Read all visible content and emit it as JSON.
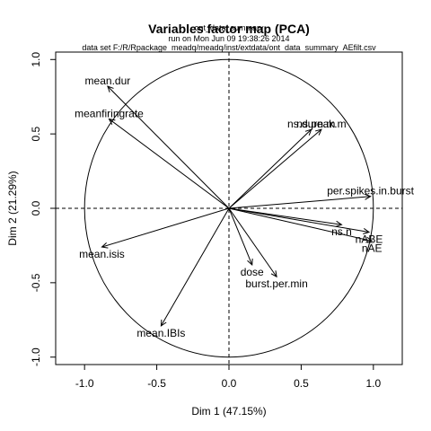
{
  "chart_data": {
    "type": "scatter",
    "title": "Variables factor map (PCA)",
    "overlay_title": "ont_data_summary",
    "run_info": "run on Mon Jun 09 19:38:26 2014",
    "data_set": "data set F:/R/Rpackage_meadq/meadq/inst/extdata/ont_data_summary_AEfilt.csv",
    "xlabel": "Dim 1 (47.15%)",
    "ylabel": "Dim 2 (21.29%)",
    "xlim": [
      -1.2,
      1.2
    ],
    "ylim": [
      -1.05,
      1.05
    ],
    "xticks": [
      "-1.0",
      "-0.5",
      "0.0",
      "0.5",
      "1.0"
    ],
    "yticks": [
      "-1.0",
      "-0.5",
      "0.0",
      "0.5",
      "1.0"
    ],
    "correlation_circle": true,
    "reference_lines": true,
    "variables": [
      {
        "name": "mean.dur",
        "x": -0.84,
        "y": 0.82
      },
      {
        "name": "meanfiringrate",
        "x": -0.83,
        "y": 0.6
      },
      {
        "name": "ns.durn.m",
        "x": 0.57,
        "y": 0.53
      },
      {
        "name": "ns.peak.m",
        "x": 0.64,
        "y": 0.53
      },
      {
        "name": "per.spikes.in.burst",
        "x": 0.98,
        "y": 0.08
      },
      {
        "name": "ns.n",
        "x": 0.78,
        "y": -0.11
      },
      {
        "name": "nABE",
        "x": 0.97,
        "y": -0.16
      },
      {
        "name": "nAE",
        "x": 0.99,
        "y": -0.22
      },
      {
        "name": "mean.isis",
        "x": -0.88,
        "y": -0.26
      },
      {
        "name": "dose",
        "x": 0.16,
        "y": -0.38
      },
      {
        "name": "burst.per.min",
        "x": 0.33,
        "y": -0.46
      },
      {
        "name": "mean.IBIs",
        "x": -0.47,
        "y": -0.79
      }
    ]
  }
}
